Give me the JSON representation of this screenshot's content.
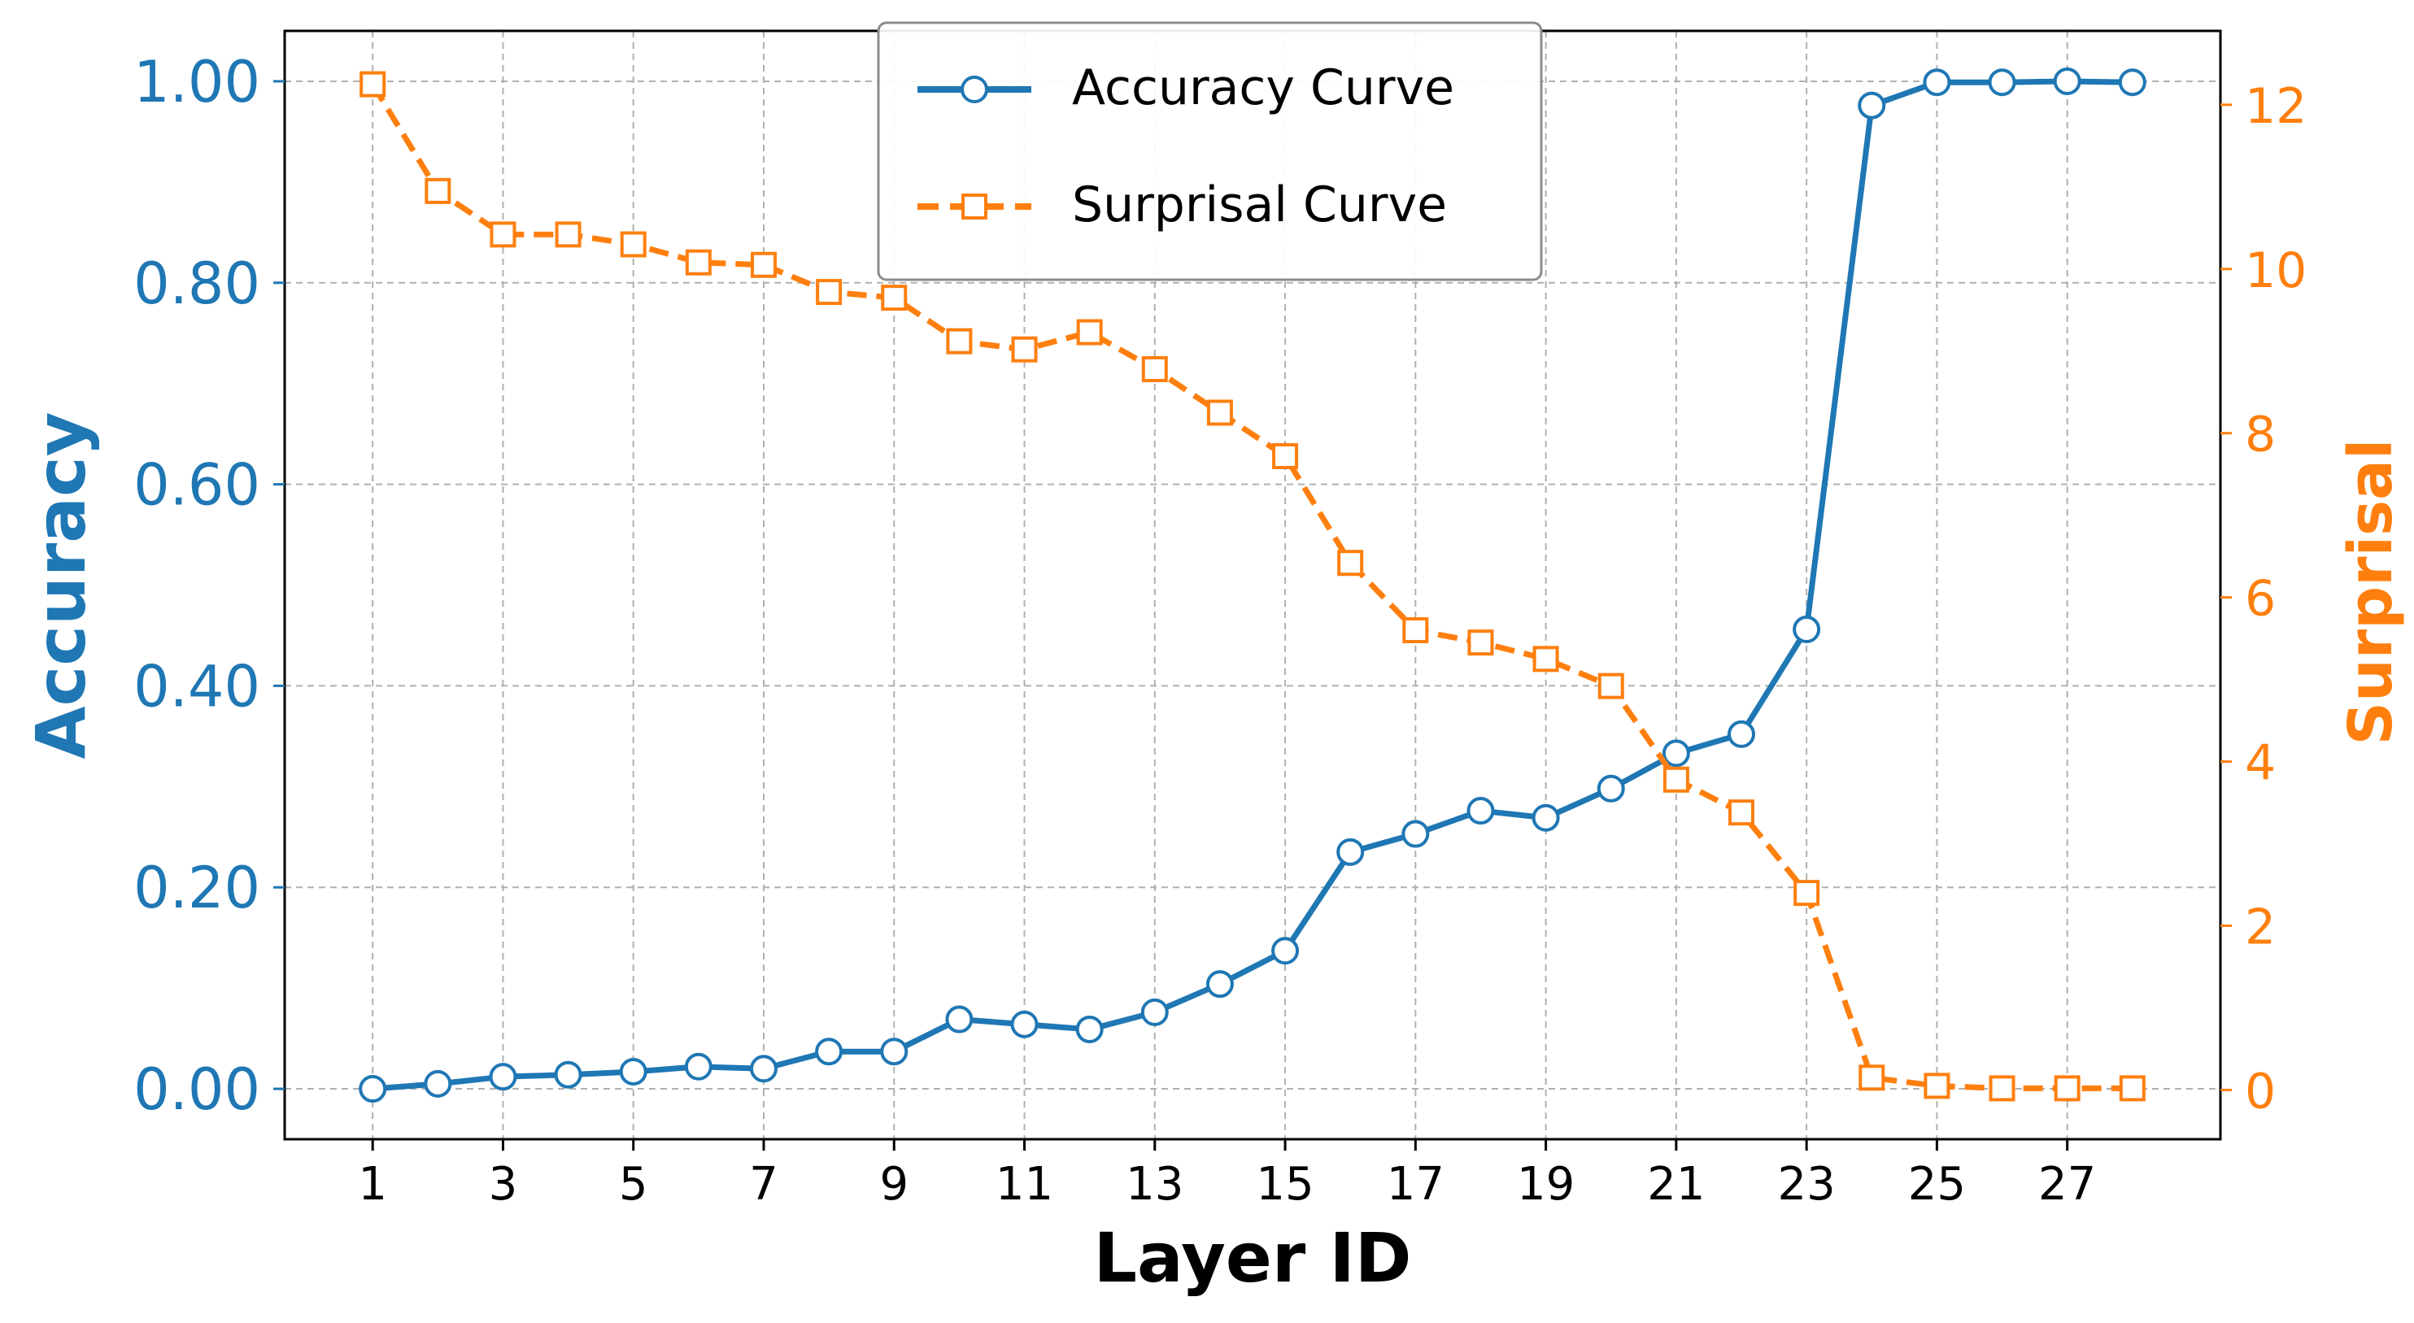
{
  "chart_data": {
    "type": "line",
    "xlabel": "Layer ID",
    "ylabel_left": "Accuracy",
    "ylabel_right": "Surprisal",
    "x": [
      1,
      2,
      3,
      4,
      5,
      6,
      7,
      8,
      9,
      10,
      11,
      12,
      13,
      14,
      15,
      16,
      17,
      18,
      19,
      20,
      21,
      22,
      23,
      24,
      25,
      26,
      27,
      28
    ],
    "x_ticks": [
      1,
      3,
      5,
      7,
      9,
      11,
      13,
      15,
      17,
      19,
      21,
      23,
      25,
      27
    ],
    "x_tick_labels": [
      "1",
      "3",
      "5",
      "7",
      "9",
      "11",
      "13",
      "15",
      "17",
      "19",
      "21",
      "23",
      "25",
      "27"
    ],
    "xlim": [
      -0.35,
      29.35
    ],
    "ylim_left": [
      -0.05,
      1.05
    ],
    "ylim_right": [
      -0.6,
      12.9
    ],
    "y_left_ticks": [
      0,
      0.2,
      0.4,
      0.6,
      0.8,
      1.0
    ],
    "y_left_tick_labels": [
      "0.00",
      "0.20",
      "0.40",
      "0.60",
      "0.80",
      "1.00"
    ],
    "y_right_ticks": [
      0,
      2,
      4,
      6,
      8,
      10,
      12
    ],
    "y_right_tick_labels": [
      "0",
      "2",
      "4",
      "6",
      "8",
      "10",
      "12"
    ],
    "grid": true,
    "legend_position": "top-center",
    "series": [
      {
        "name": "Accuracy Curve",
        "axis": "left",
        "color": "#1f77b4",
        "marker": "circle",
        "line_style": "solid",
        "values": [
          0.0,
          0.005,
          0.012,
          0.014,
          0.017,
          0.022,
          0.02,
          0.037,
          0.037,
          0.069,
          0.064,
          0.059,
          0.076,
          0.104,
          0.137,
          0.235,
          0.253,
          0.276,
          0.269,
          0.298,
          0.333,
          0.352,
          0.456,
          0.976,
          0.999,
          0.999,
          1.0,
          0.999
        ]
      },
      {
        "name": "Surprisal Curve",
        "axis": "right",
        "color": "#ff7f0e",
        "marker": "square",
        "line_style": "dashed",
        "values": [
          12.25,
          10.95,
          10.42,
          10.42,
          10.3,
          10.08,
          10.05,
          9.72,
          9.65,
          9.12,
          9.02,
          9.23,
          8.78,
          8.25,
          7.72,
          6.42,
          5.6,
          5.45,
          5.25,
          4.92,
          3.78,
          3.38,
          2.4,
          0.15,
          0.05,
          0.02,
          0.02,
          0.02
        ]
      }
    ]
  }
}
